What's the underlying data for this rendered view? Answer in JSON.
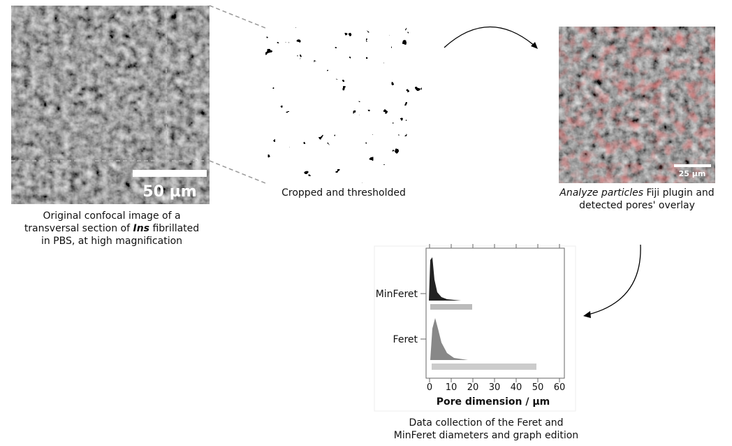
{
  "panels": [
    {
      "scale_bar": "50 µm",
      "caption": {
        "line1": "Original confocal image of a",
        "line2_before": "transversal section of ",
        "line2_emphasis": "Ins",
        "line2_after": " fibrillated",
        "line3": "in PBS, at high magnification"
      }
    },
    {
      "caption": "Cropped and thresholded"
    },
    {
      "scale_bar": "25 µm",
      "caption": {
        "line1_emphasis": "Analyze particles",
        "line1_after": " Fiji plugin and",
        "line2": "detected pores' overlay"
      }
    }
  ],
  "chart": {
    "categories": [
      "MinFeret",
      "Feret"
    ],
    "x_label": "Pore dimension / µm",
    "xlim": [
      0,
      60
    ],
    "xticks": [
      0,
      10,
      20,
      30,
      40,
      50,
      60
    ],
    "caption": {
      "line1": "Data collection of the Feret and",
      "line2": "MinFeret diameters and graph edition"
    }
  }
}
